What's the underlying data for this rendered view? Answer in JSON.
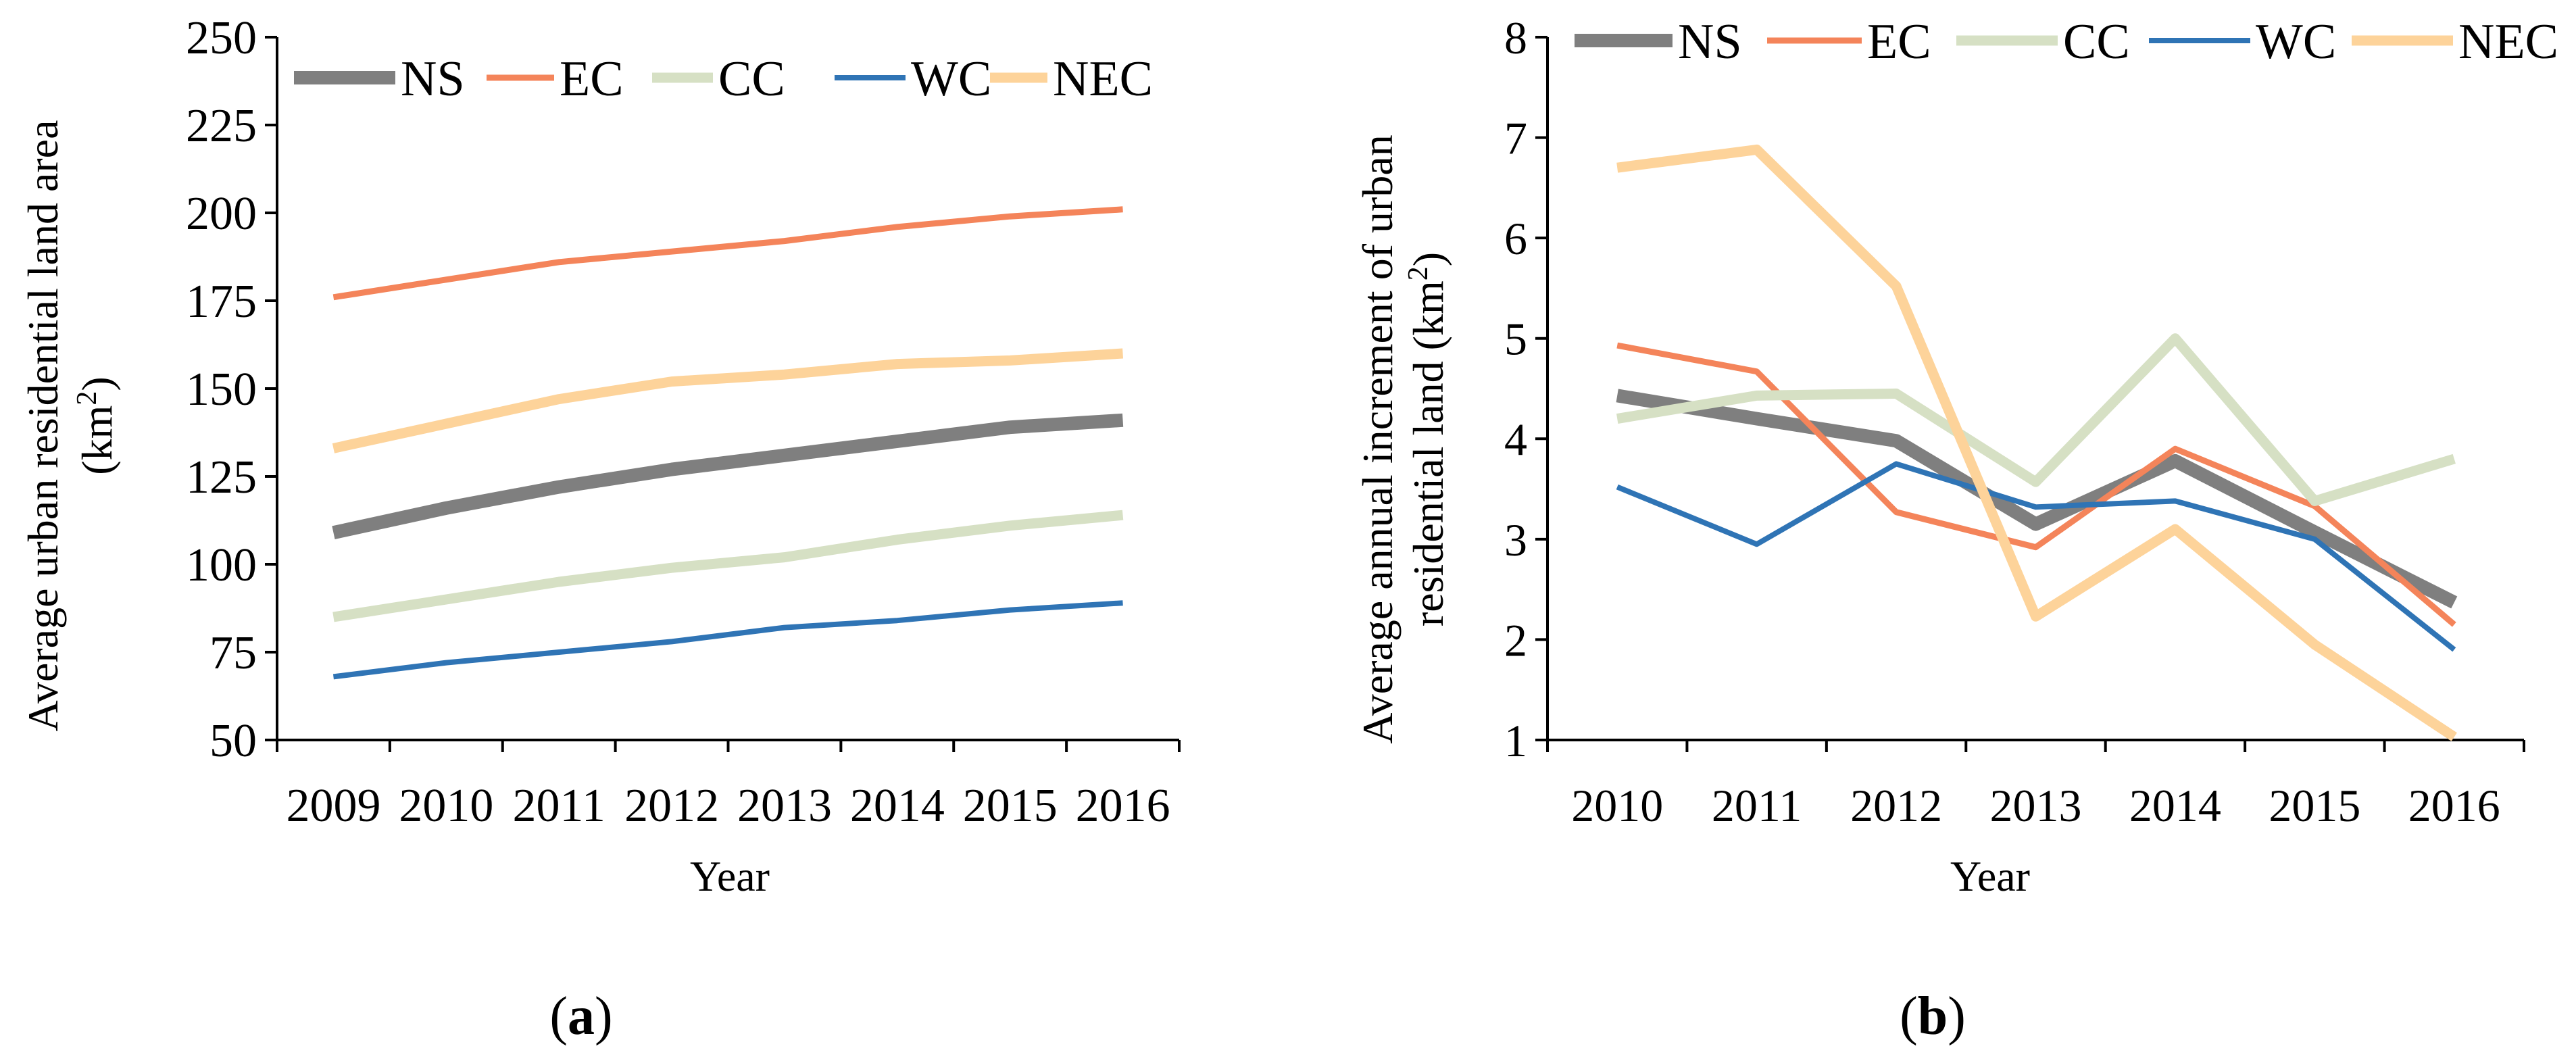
{
  "chart_data": [
    {
      "id": "a",
      "type": "line",
      "caption_letter": "a",
      "xlabel": "Year",
      "ylabel_line1": "Average urban residential land area",
      "ylabel_line2": "(km",
      "ylabel_sup": "2",
      "ylabel_end": ")",
      "categories": [
        "2009",
        "2010",
        "2011",
        "2012",
        "2013",
        "2014",
        "2015",
        "2016"
      ],
      "ylim": [
        50,
        250
      ],
      "yticks": [
        50,
        75,
        100,
        125,
        150,
        175,
        200,
        225,
        250
      ],
      "grid": false,
      "legend": "top",
      "series": [
        {
          "name": "NS",
          "color": "#7f7f7f",
          "values": [
            109,
            116,
            122,
            127,
            131,
            135,
            139,
            141
          ]
        },
        {
          "name": "EC",
          "color": "#f4845a",
          "values": [
            176,
            181,
            186,
            189,
            192,
            196,
            199,
            201
          ]
        },
        {
          "name": "CC",
          "color": "#d6e0c4",
          "values": [
            85,
            90,
            95,
            99,
            102,
            107,
            111,
            114
          ]
        },
        {
          "name": "WC",
          "color": "#2f74b5",
          "values": [
            68,
            72,
            75,
            78,
            82,
            84,
            87,
            89
          ]
        },
        {
          "name": "NEC",
          "color": "#fdd39a",
          "values": [
            133,
            140,
            147,
            152,
            154,
            157,
            158,
            160
          ]
        }
      ]
    },
    {
      "id": "b",
      "type": "line",
      "caption_letter": "b",
      "xlabel": "Year",
      "ylabel_line1": "Average annual increment of urban",
      "ylabel_line2": "residential land (km",
      "ylabel_sup": "2",
      "ylabel_end": ")",
      "categories": [
        "2010",
        "2011",
        "2012",
        "2013",
        "2014",
        "2015",
        "2016"
      ],
      "ylim": [
        1,
        8
      ],
      "yticks": [
        1,
        2,
        3,
        4,
        5,
        6,
        7,
        8
      ],
      "grid": false,
      "legend": "top",
      "series": [
        {
          "name": "NS",
          "color": "#7f7f7f",
          "values": [
            4.43,
            4.2,
            3.98,
            3.15,
            3.78,
            3.07,
            2.37
          ]
        },
        {
          "name": "EC",
          "color": "#f4845a",
          "values": [
            4.93,
            4.67,
            3.27,
            2.92,
            3.9,
            3.33,
            2.15
          ]
        },
        {
          "name": "CC",
          "color": "#d6e0c4",
          "values": [
            4.2,
            4.43,
            4.45,
            3.57,
            5.0,
            3.38,
            3.8
          ]
        },
        {
          "name": "WC",
          "color": "#2f74b5",
          "values": [
            3.52,
            2.95,
            3.75,
            3.32,
            3.38,
            3.0,
            1.9
          ]
        },
        {
          "name": "NEC",
          "color": "#fdd39a",
          "values": [
            6.7,
            6.88,
            5.52,
            2.23,
            3.1,
            1.95,
            1.03
          ]
        }
      ]
    }
  ]
}
